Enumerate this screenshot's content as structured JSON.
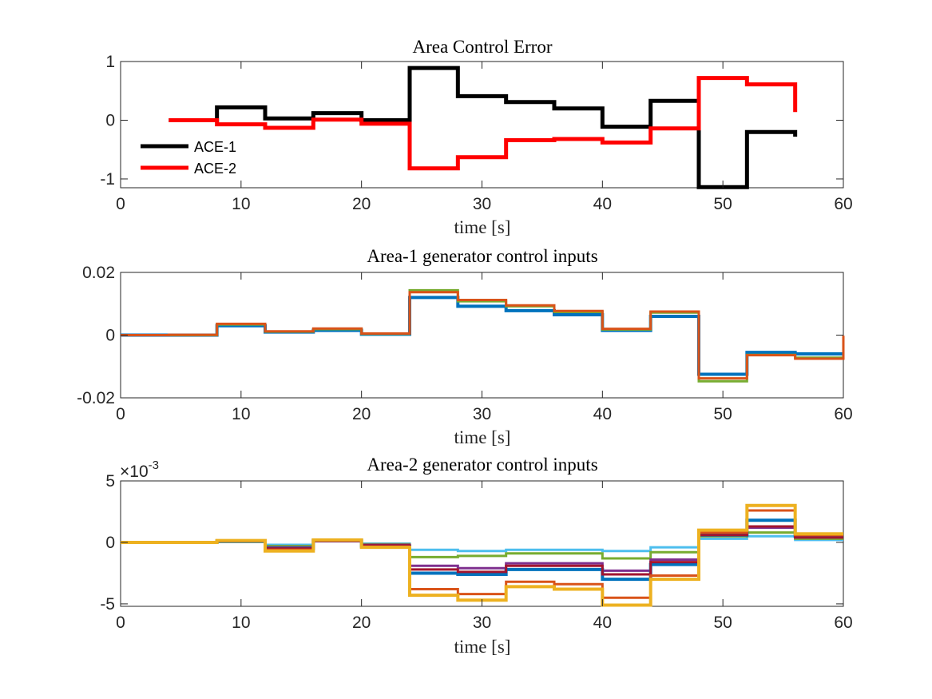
{
  "chart_data": [
    {
      "type": "line",
      "title": "Area Control Error",
      "xlabel": "time [s]",
      "ylabel": "",
      "xlim": [
        0,
        60
      ],
      "ylim": [
        -1.15,
        1.0
      ],
      "xticks": [
        0,
        10,
        20,
        30,
        40,
        50,
        60
      ],
      "yticks": [
        -1,
        0,
        1
      ],
      "ytick_labels": [
        "-1",
        "0",
        "1"
      ],
      "y_exponent": "",
      "step": true,
      "legend_position": "lower-left",
      "series": [
        {
          "name": "ACE-1",
          "color": "#000000",
          "width": 5,
          "legend": true,
          "x": [
            4,
            8,
            12,
            16,
            20,
            24,
            28,
            32,
            36,
            40,
            44,
            48,
            52,
            56,
            56
          ],
          "y": [
            0,
            0.22,
            0.03,
            0.12,
            0.0,
            0.89,
            0.41,
            0.31,
            0.2,
            -0.11,
            0.33,
            -1.14,
            -0.2,
            -0.2,
            -0.28
          ]
        },
        {
          "name": "ACE-2",
          "color": "#ff0000",
          "width": 5,
          "legend": true,
          "x": [
            4,
            8,
            12,
            16,
            20,
            24,
            28,
            32,
            36,
            40,
            44,
            48,
            52,
            56,
            56
          ],
          "y": [
            0,
            -0.07,
            -0.13,
            0.01,
            -0.06,
            -0.82,
            -0.63,
            -0.34,
            -0.32,
            -0.38,
            -0.14,
            0.72,
            0.61,
            0.61,
            0.14
          ]
        }
      ]
    },
    {
      "type": "line",
      "title": "Area-1 generator control inputs",
      "xlabel": "time [s]",
      "ylabel": "",
      "xlim": [
        0,
        60
      ],
      "ylim": [
        -0.02,
        0.02
      ],
      "xticks": [
        0,
        10,
        20,
        30,
        40,
        50,
        60
      ],
      "yticks": [
        -0.02,
        0,
        0.02
      ],
      "ytick_labels": [
        "-0.02",
        "0",
        "0.02"
      ],
      "y_exponent": "",
      "step": true,
      "series": [
        {
          "color": "#0072bd",
          "width": 4,
          "x": [
            0,
            4,
            8,
            12,
            16,
            20,
            24,
            28,
            32,
            36,
            40,
            44,
            48,
            52,
            56,
            60
          ],
          "y": [
            0,
            0,
            0.003,
            0.001,
            0.0015,
            0.0003,
            0.012,
            0.0092,
            0.0078,
            0.0065,
            0.0015,
            0.006,
            -0.0125,
            -0.0055,
            -0.006,
            -0.006
          ]
        },
        {
          "color": "#77ac30",
          "width": 3,
          "x": [
            0,
            4,
            8,
            12,
            16,
            20,
            24,
            28,
            32,
            36,
            40,
            44,
            48,
            52,
            56,
            60
          ],
          "y": [
            0,
            0,
            0.0034,
            0.0011,
            0.0019,
            0.0004,
            0.0143,
            0.0108,
            0.0092,
            0.0074,
            0.0018,
            0.0072,
            -0.0147,
            -0.0063,
            -0.0072,
            -0.0072
          ]
        },
        {
          "color": "#d95319",
          "width": 3,
          "x": [
            0,
            4,
            8,
            12,
            16,
            20,
            24,
            28,
            32,
            36,
            40,
            44,
            48,
            52,
            56,
            60
          ],
          "y": [
            0,
            0.0001,
            0.0036,
            0.0012,
            0.0021,
            0.0005,
            0.0137,
            0.0112,
            0.0095,
            0.0077,
            0.002,
            0.0075,
            -0.0138,
            -0.0064,
            -0.0075,
            -0.0002
          ]
        }
      ]
    },
    {
      "type": "line",
      "title": "Area-2 generator control inputs",
      "xlabel": "time [s]",
      "ylabel": "",
      "xlim": [
        0,
        60
      ],
      "ylim": [
        -5.2,
        5.0
      ],
      "xticks": [
        0,
        10,
        20,
        30,
        40,
        50,
        60
      ],
      "yticks": [
        -5,
        0,
        5
      ],
      "ytick_labels": [
        "-5",
        "0",
        "5"
      ],
      "y_exponent": "×10",
      "y_exponent_power": "-3",
      "step": true,
      "series": [
        {
          "color": "#4dbeee",
          "width": 3,
          "x": [
            0,
            4,
            8,
            12,
            16,
            20,
            24,
            28,
            32,
            36,
            40,
            44,
            48,
            52,
            56,
            60
          ],
          "y": [
            0,
            0,
            0.05,
            -0.2,
            0.1,
            -0.1,
            -0.6,
            -0.7,
            -0.6,
            -0.6,
            -0.7,
            -0.4,
            0.3,
            0.5,
            0.2,
            0.2
          ]
        },
        {
          "color": "#77ac30",
          "width": 3,
          "x": [
            0,
            4,
            8,
            12,
            16,
            20,
            24,
            28,
            32,
            36,
            40,
            44,
            48,
            52,
            56,
            60
          ],
          "y": [
            0,
            0,
            0.05,
            -0.3,
            0.1,
            -0.15,
            -1.2,
            -1.1,
            -0.9,
            -0.9,
            -1.3,
            -0.8,
            0.5,
            0.8,
            0.3,
            0.3
          ]
        },
        {
          "color": "#7e2f8e",
          "width": 3,
          "x": [
            0,
            4,
            8,
            12,
            16,
            20,
            24,
            28,
            32,
            36,
            40,
            44,
            48,
            52,
            56,
            60
          ],
          "y": [
            0,
            0,
            0.08,
            -0.4,
            0.1,
            -0.2,
            -1.9,
            -2.1,
            -1.7,
            -1.7,
            -2.3,
            -1.4,
            0.7,
            1.2,
            0.4,
            0.4
          ]
        },
        {
          "color": "#0072bd",
          "width": 4,
          "x": [
            0,
            4,
            8,
            12,
            16,
            20,
            24,
            28,
            32,
            36,
            40,
            44,
            48,
            52,
            56,
            60
          ],
          "y": [
            0,
            0,
            0.1,
            -0.5,
            0.15,
            -0.3,
            -2.5,
            -2.6,
            -2.2,
            -2.2,
            -3.0,
            -1.8,
            0.6,
            1.8,
            0.5,
            0.5
          ]
        },
        {
          "color": "#a2142f",
          "width": 3,
          "x": [
            0,
            4,
            8,
            12,
            16,
            20,
            24,
            28,
            32,
            36,
            40,
            44,
            48,
            52,
            56,
            60
          ],
          "y": [
            0,
            0,
            0.1,
            -0.5,
            0.12,
            -0.25,
            -2.2,
            -2.4,
            -1.9,
            -1.9,
            -2.6,
            -1.6,
            0.6,
            1.3,
            0.4,
            0.4
          ]
        },
        {
          "color": "#d95319",
          "width": 3,
          "x": [
            0,
            4,
            8,
            12,
            16,
            20,
            24,
            28,
            32,
            36,
            40,
            44,
            48,
            52,
            56,
            60
          ],
          "y": [
            0,
            0,
            0.15,
            -0.6,
            0.18,
            -0.35,
            -3.8,
            -4.2,
            -3.2,
            -3.4,
            -4.5,
            -2.7,
            0.8,
            2.6,
            0.6,
            0.6
          ]
        },
        {
          "color": "#edb120",
          "width": 4,
          "x": [
            0,
            4,
            8,
            12,
            16,
            20,
            24,
            28,
            32,
            36,
            40,
            44,
            48,
            52,
            56,
            60
          ],
          "y": [
            0,
            0,
            0.15,
            -0.7,
            0.2,
            -0.4,
            -4.3,
            -4.7,
            -3.6,
            -3.8,
            -5.1,
            -3.0,
            1.0,
            3.0,
            0.7,
            0.7
          ]
        }
      ]
    }
  ]
}
